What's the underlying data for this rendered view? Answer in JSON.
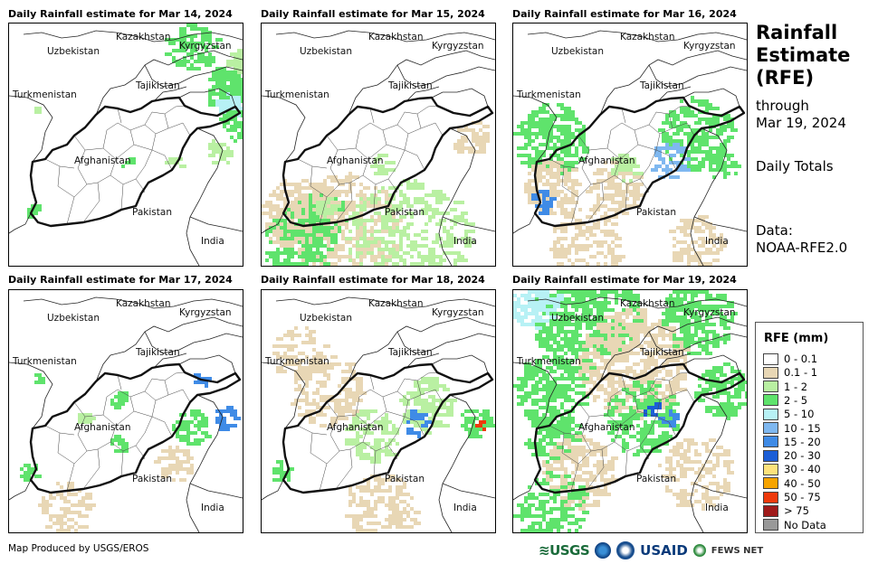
{
  "panels": [
    {
      "title": "Daily Rainfall estimate for Mar 14, 2024"
    },
    {
      "title": "Daily Rainfall estimate for Mar 15, 2024"
    },
    {
      "title": "Daily Rainfall estimate for Mar 16, 2024"
    },
    {
      "title": "Daily Rainfall estimate for Mar 17, 2024"
    },
    {
      "title": "Daily Rainfall estimate for Mar 18, 2024"
    },
    {
      "title": "Daily Rainfall estimate for Mar 19, 2024"
    }
  ],
  "map_labels": {
    "kazakhstan": "Kazakhstan",
    "kyrgyzstan": "Kyrgyzstan",
    "uzbekistan": "Uzbekistan",
    "tajikistan": "Tajikistan",
    "turkmenistan": "Turkmenistan",
    "afghanistan": "Afghanistan",
    "pakistan": "Pakistan",
    "india": "India"
  },
  "side": {
    "title_line1": "Rainfall",
    "title_line2": "Estimate",
    "title_line3": "(RFE)",
    "through": "through",
    "date": "Mar 19, 2024",
    "daily": "Daily Totals",
    "data_label": "Data:",
    "data_source": "NOAA-RFE2.0"
  },
  "legend": {
    "title": "RFE (mm)",
    "items": [
      {
        "label": "0 - 0.1",
        "color": "#ffffff"
      },
      {
        "label": "0.1 - 1",
        "color": "#e8d7b5"
      },
      {
        "label": "1 - 2",
        "color": "#b9f0a2"
      },
      {
        "label": "2 - 5",
        "color": "#5fe36c"
      },
      {
        "label": "5 - 10",
        "color": "#b7f1f5"
      },
      {
        "label": "10 - 15",
        "color": "#7fb8f0"
      },
      {
        "label": "15 - 20",
        "color": "#3f8be6"
      },
      {
        "label": "20 - 30",
        "color": "#1c5ed6"
      },
      {
        "label": "30 - 40",
        "color": "#fde27b"
      },
      {
        "label": "40 - 50",
        "color": "#f7a400"
      },
      {
        "label": "50 - 75",
        "color": "#ef3a0c"
      },
      {
        "label": "> 75",
        "color": "#a01b1b"
      },
      {
        "label": "No Data",
        "color": "#999999"
      }
    ]
  },
  "footer": {
    "credit": "Map Produced by USGS/EROS"
  },
  "logos": {
    "usgs": "≋USGS",
    "usaid": "USAID",
    "fews": "FEWS NET"
  }
}
